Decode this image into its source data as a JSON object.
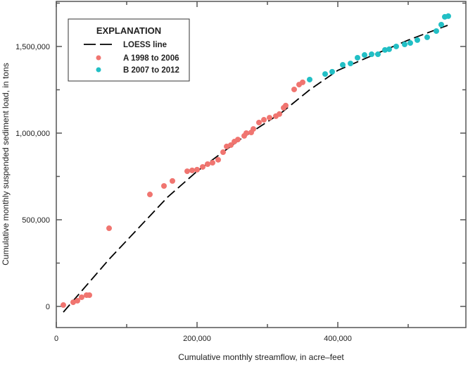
{
  "chart_data": {
    "type": "scatter",
    "title": "",
    "xlabel": "Cumulative monthly streamflow, in acre–feet",
    "ylabel": "Cumulative monthly suspended sediment load, in tons",
    "xlim": [
      0,
      582000
    ],
    "ylim": [
      -122000,
      1760000
    ],
    "x_ticks": [
      {
        "value": 0,
        "label": "0"
      },
      {
        "value": 200000,
        "label": "200,000"
      },
      {
        "value": 400000,
        "label": "400,000"
      }
    ],
    "x_minor_ticks": [
      100000,
      300000,
      500000
    ],
    "y_ticks": [
      {
        "value": 0,
        "label": "0"
      },
      {
        "value": 500000,
        "label": "500,000"
      },
      {
        "value": 1000000,
        "label": "1,000,000"
      },
      {
        "value": 1500000,
        "label": "1,500,000"
      }
    ],
    "y_minor_ticks": [
      250000,
      750000,
      1250000,
      1750000
    ],
    "grid": false,
    "legend": {
      "title": "EXPLANATION",
      "placement": "top-left",
      "loess_label": "LOESS line"
    },
    "series": [
      {
        "name": "A 1998 to 2006",
        "color": "#F07570",
        "points": [
          [
            10000,
            8000
          ],
          [
            24000,
            24000
          ],
          [
            30000,
            33000
          ],
          [
            36000,
            53000
          ],
          [
            43000,
            65000
          ],
          [
            47000,
            65000
          ],
          [
            75000,
            451000
          ],
          [
            133000,
            646000
          ],
          [
            153000,
            695000
          ],
          [
            165000,
            724000
          ],
          [
            186000,
            780000
          ],
          [
            193000,
            785000
          ],
          [
            200000,
            789000
          ],
          [
            208000,
            805000
          ],
          [
            215000,
            821000
          ],
          [
            222000,
            829000
          ],
          [
            230000,
            846000
          ],
          [
            237000,
            890000
          ],
          [
            242000,
            923000
          ],
          [
            248000,
            931000
          ],
          [
            253000,
            951000
          ],
          [
            258000,
            963000
          ],
          [
            267000,
            984000
          ],
          [
            270000,
            1000000
          ],
          [
            277000,
            1004000
          ],
          [
            280000,
            1024000
          ],
          [
            288000,
            1061000
          ],
          [
            295000,
            1077000
          ],
          [
            303000,
            1089000
          ],
          [
            312000,
            1098000
          ],
          [
            317000,
            1110000
          ],
          [
            323000,
            1146000
          ],
          [
            326000,
            1159000
          ],
          [
            338000,
            1252000
          ],
          [
            345000,
            1280000
          ],
          [
            350000,
            1293000
          ]
        ]
      },
      {
        "name": "B 2007 to 2012",
        "color": "#22BFC5",
        "points": [
          [
            360000,
            1309000
          ],
          [
            382000,
            1341000
          ],
          [
            392000,
            1354000
          ],
          [
            407000,
            1394000
          ],
          [
            418000,
            1402000
          ],
          [
            428000,
            1435000
          ],
          [
            438000,
            1451000
          ],
          [
            448000,
            1455000
          ],
          [
            457000,
            1455000
          ],
          [
            467000,
            1480000
          ],
          [
            473000,
            1484000
          ],
          [
            483000,
            1500000
          ],
          [
            495000,
            1512000
          ],
          [
            503000,
            1520000
          ],
          [
            513000,
            1537000
          ],
          [
            527000,
            1553000
          ],
          [
            540000,
            1589000
          ],
          [
            547000,
            1626000
          ],
          [
            552000,
            1671000
          ],
          [
            557000,
            1675000
          ]
        ]
      }
    ],
    "loess": {
      "name": "LOESS line",
      "color": "#000000",
      "points": [
        [
          10000,
          -33000
        ],
        [
          75000,
          272000
        ],
        [
          158000,
          630000
        ],
        [
          200000,
          780000
        ],
        [
          260000,
          960000
        ],
        [
          320000,
          1118000
        ],
        [
          360000,
          1250000
        ],
        [
          400000,
          1362000
        ],
        [
          450000,
          1450000
        ],
        [
          500000,
          1537000
        ],
        [
          556000,
          1622000
        ]
      ]
    }
  }
}
